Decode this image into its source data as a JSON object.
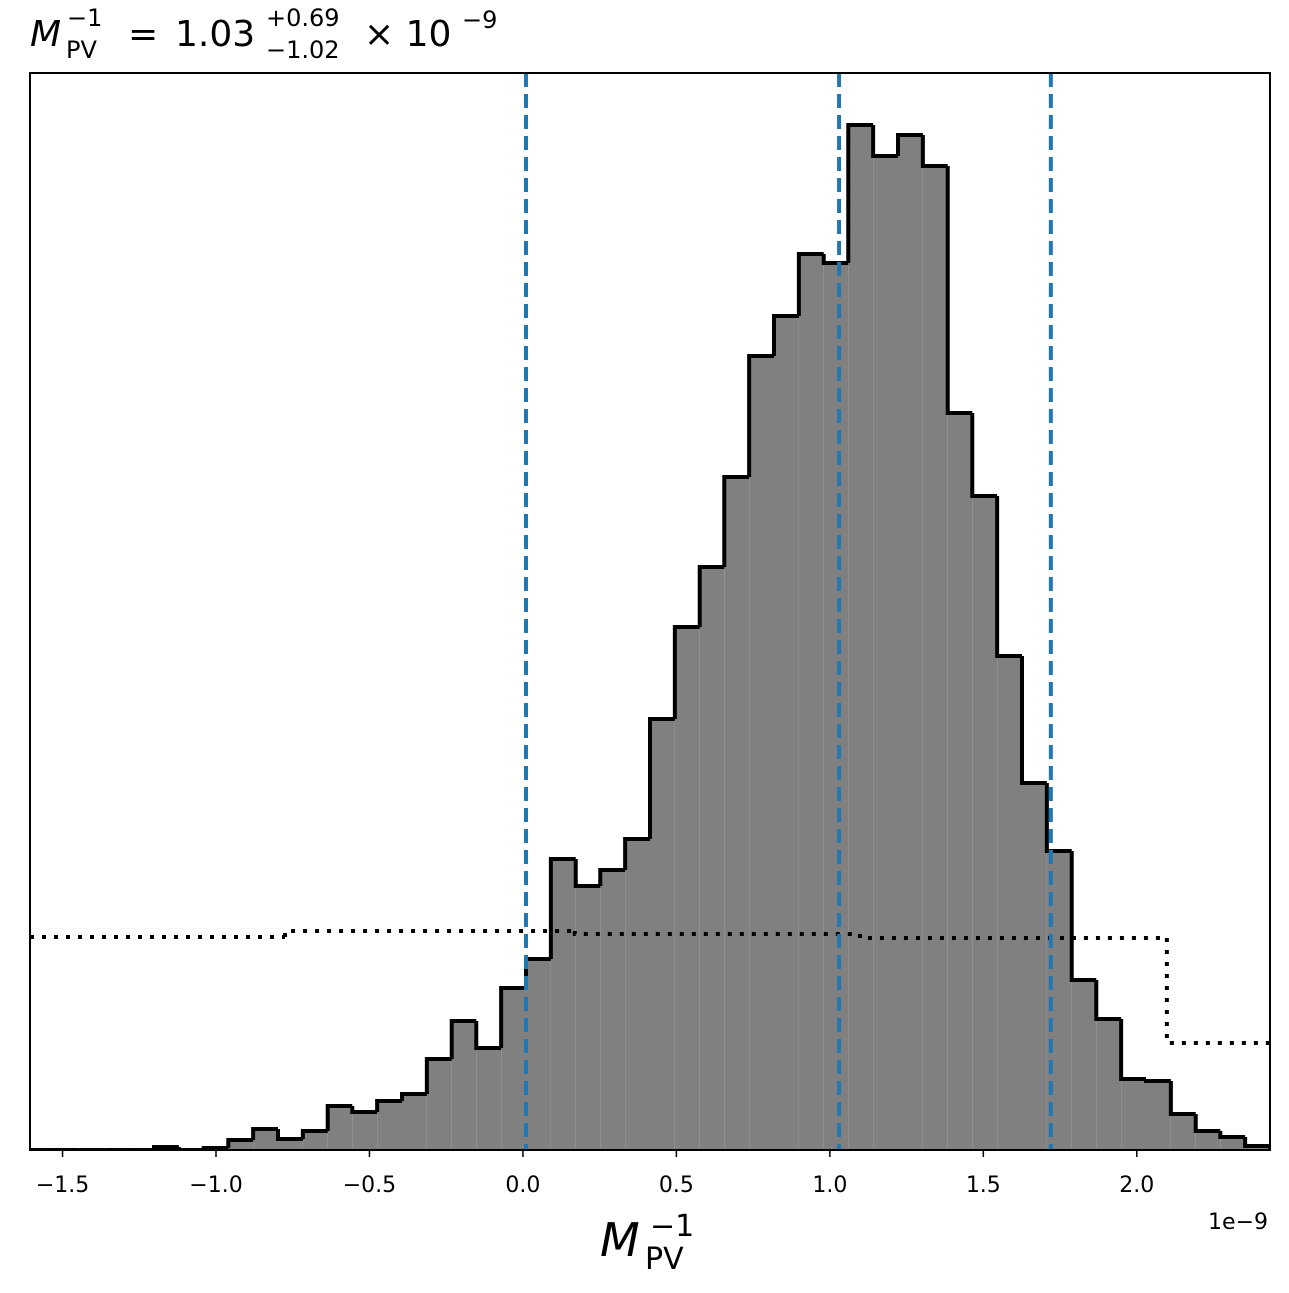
{
  "chart_data": {
    "type": "histogram",
    "title": {
      "symbol": "M",
      "superscript": "−1",
      "subscript": "PV",
      "relation": "=",
      "median": "1.03",
      "upper": "+0.69",
      "lower": "−1.02",
      "multiplier": "× 10",
      "exponent": "−9"
    },
    "xlabel": {
      "symbol": "M",
      "superscript": "−1",
      "subscript": "PV"
    },
    "offset_text": "1e−9",
    "bins": [
      -1.606,
      -1.525,
      -1.444,
      -1.364,
      -1.283,
      -1.202,
      -1.121,
      -1.04,
      -0.96,
      -0.879,
      -0.798,
      -0.717,
      -0.636,
      -0.556,
      -0.475,
      -0.394,
      -0.313,
      -0.232,
      -0.152,
      -0.071,
      0.01,
      0.091,
      0.172,
      0.252,
      0.333,
      0.414,
      0.495,
      0.576,
      0.656,
      0.737,
      0.818,
      0.899,
      0.98,
      1.06,
      1.141,
      1.222,
      1.303,
      1.384,
      1.464,
      1.545,
      1.626,
      1.707,
      1.788,
      1.868,
      1.949,
      2.03,
      2.111,
      2.192,
      2.272,
      2.353,
      2.434
    ],
    "counts": [
      0,
      0,
      0,
      0,
      0,
      3,
      0,
      2,
      10,
      21,
      11,
      19,
      44,
      38,
      49,
      56,
      91,
      129,
      102,
      162,
      191,
      291,
      264,
      280,
      311,
      431,
      523,
      583,
      673,
      794,
      834,
      896,
      887,
      1025,
      994,
      1015,
      984,
      737,
      654,
      494,
      367,
      299,
      170,
      131,
      71,
      69,
      36,
      19,
      13,
      4
    ],
    "color": "#808080",
    "edgecolor": "#000000",
    "prior": {
      "bins": [
        -1.606,
        -0.775,
        0.169,
        1.098,
        2.098,
        2.434
      ],
      "counts": [
        213,
        219,
        216,
        212,
        107
      ],
      "color": "#000000",
      "linestyle": "dotted"
    },
    "quantiles": {
      "values": [
        0.01,
        1.03,
        1.72
      ],
      "color": "#1f77b4",
      "linestyle": "dashed"
    },
    "xlim": [
      -1.606,
      2.434
    ],
    "ylim": [
      0,
      1077
    ],
    "xticks": [
      {
        "value": -1.5,
        "label": "−1.5"
      },
      {
        "value": -1.0,
        "label": "−1.0"
      },
      {
        "value": -0.5,
        "label": "−0.5"
      },
      {
        "value": 0,
        "label": "0.0"
      },
      0.5,
      {
        "value": 1.0,
        "label": "1.0"
      },
      1.5,
      {
        "value": 2.0,
        "label": "2.0"
      }
    ]
  }
}
